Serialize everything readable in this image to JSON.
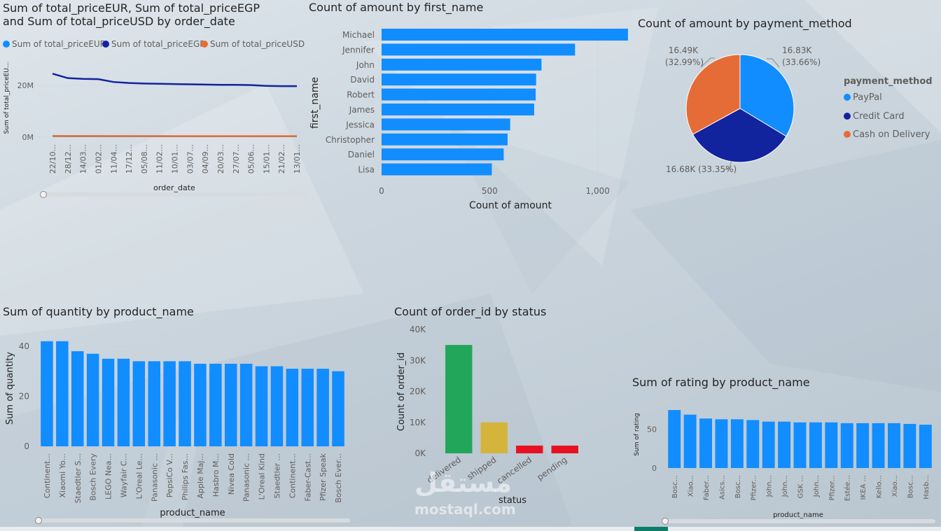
{
  "colors": {
    "eur": "#118dff",
    "egp": "#12239e",
    "usd": "#e66c37",
    "bar": "#118dff",
    "delivered": "#21a65a",
    "shipped": "#d4b43b",
    "cancelled": "#e81123",
    "pending": "#e81123"
  },
  "watermark": {
    "text": "مستقل",
    "sub": "mostaql.com"
  },
  "chart_data": [
    {
      "type": "line",
      "title": "Sum of total_priceEUR, Sum of total_priceEGP and Sum of total_priceUSD by order_date",
      "title_line1": "Sum of total_priceEUR, Sum of total_priceEGP",
      "title_line2": "and Sum of total_priceUSD by order_date",
      "xlabel": "order_date",
      "ylabel": "Sum of total_priceEU...",
      "categories": [
        "22/10...",
        "28/12...",
        "14/03...",
        "01/02...",
        "11/04...",
        "17/12...",
        "05/08...",
        "11/02...",
        "10/01...",
        "03/07...",
        "04/09...",
        "20/03...",
        "27/07...",
        "05/06...",
        "15/01...",
        "21/02...",
        "13/01..."
      ],
      "y_ticks": [
        "0M",
        "20M"
      ],
      "ylim": [
        0,
        30000000
      ],
      "legend": [
        "Sum of total_priceEUR",
        "Sum of total_priceEGP",
        "Sum of total_priceUSD"
      ],
      "series": [
        {
          "name": "Sum of total_priceEUR",
          "values": [
            400000,
            380000,
            370000,
            370000,
            360000,
            360000,
            355000,
            355000,
            352000,
            350000,
            348000,
            346000,
            345000,
            344000,
            342000,
            340000,
            338000
          ]
        },
        {
          "name": "Sum of total_priceEGP",
          "values": [
            24500000,
            22800000,
            22500000,
            22400000,
            21300000,
            20900000,
            20700000,
            20600000,
            20500000,
            20400000,
            20300000,
            20200000,
            20200000,
            20100000,
            19800000,
            19700000,
            19700000
          ]
        },
        {
          "name": "Sum of total_priceUSD",
          "values": [
            420000,
            400000,
            395000,
            392000,
            385000,
            380000,
            378000,
            376000,
            374000,
            372000,
            370000,
            368000,
            366000,
            365000,
            362000,
            360000,
            358000
          ]
        }
      ]
    },
    {
      "type": "bar",
      "orientation": "horizontal",
      "title": "Count of amount by first_name",
      "xlabel": "Count of amount",
      "ylabel": "first_name",
      "categories": [
        "Michael",
        "Jennifer",
        "John",
        "David",
        "Robert",
        "James",
        "Jessica",
        "Christopher",
        "Daniel",
        "Lisa"
      ],
      "values": [
        1140,
        895,
        740,
        715,
        713,
        706,
        595,
        583,
        565,
        510
      ],
      "x_ticks": [
        "0",
        "500",
        "1,000"
      ],
      "xlim": [
        0,
        1150
      ]
    },
    {
      "type": "pie",
      "title": "Count of amount by payment_method",
      "legend_title": "payment_method",
      "labels": [
        "PayPal",
        "Credit Card",
        "Cash on Delivery"
      ],
      "values": [
        16830,
        16680,
        16490
      ],
      "value_labels": [
        "16.83K",
        "16.68K",
        "16.49K"
      ],
      "pct_labels": [
        "(33.66%)",
        "(33.35%)",
        "(32.99%)"
      ],
      "label_text": [
        "16.83K\n(33.66%)",
        "16.68K (33.35%)",
        "16.49K\n(32.99%)"
      ]
    },
    {
      "type": "bar",
      "title": "Sum of quantity by product_name",
      "xlabel": "product_name",
      "ylabel": "Sum of quantity",
      "categories": [
        "Continent...",
        "Xiaomi Yo...",
        "Staedtler S...",
        "Bosch Every",
        "LEGO Nea...",
        "Wayfair C...",
        "L'Oreal Le...",
        "Panasonic ...",
        "PepsiCo V...",
        "Philips Fas...",
        "Apple Maj...",
        "Hasbro M...",
        "Nivea Cold",
        "Panasonic ...",
        "L'Oreal Kind",
        "Staedtler ...",
        "Continent...",
        "Faber-Cast...",
        "Pfizer Speak",
        "Bosch Ever..."
      ],
      "values": [
        42,
        42,
        38,
        37,
        35,
        35,
        34,
        34,
        34,
        34,
        33,
        33,
        33,
        33,
        32,
        32,
        31,
        31,
        31,
        30
      ],
      "y_ticks": [
        "0",
        "20",
        "40"
      ],
      "ylim": [
        0,
        45
      ]
    },
    {
      "type": "bar",
      "title": "Count of order_id by status",
      "xlabel": "status",
      "ylabel": "Count of order_id",
      "categories": [
        "delivered",
        "shipped",
        "cancelled",
        "pending"
      ],
      "values": [
        35000,
        10000,
        2500,
        2500
      ],
      "y_ticks": [
        "0K",
        "10K",
        "20K",
        "30K",
        "40K"
      ],
      "ylim": [
        0,
        40000
      ]
    },
    {
      "type": "bar",
      "title": "Sum of rating by product_name",
      "xlabel": "product_name",
      "ylabel": "Sum of rating",
      "categories": [
        "Bosc...",
        "Xiao...",
        "Faber...",
        "Asics...",
        "Bosc...",
        "Pfizer...",
        "John...",
        "John...",
        "GSK ...",
        "John...",
        "Pfizer...",
        "Estée...",
        "IKEA ...",
        "Kello...",
        "Xiao...",
        "Bosc...",
        "Hasb..."
      ],
      "values": [
        75,
        69,
        64,
        63,
        63,
        62,
        60,
        60,
        59,
        59,
        59,
        58,
        58,
        58,
        58,
        57,
        56
      ],
      "y_ticks": [
        "0",
        "50"
      ],
      "ylim": [
        0,
        85
      ]
    }
  ]
}
